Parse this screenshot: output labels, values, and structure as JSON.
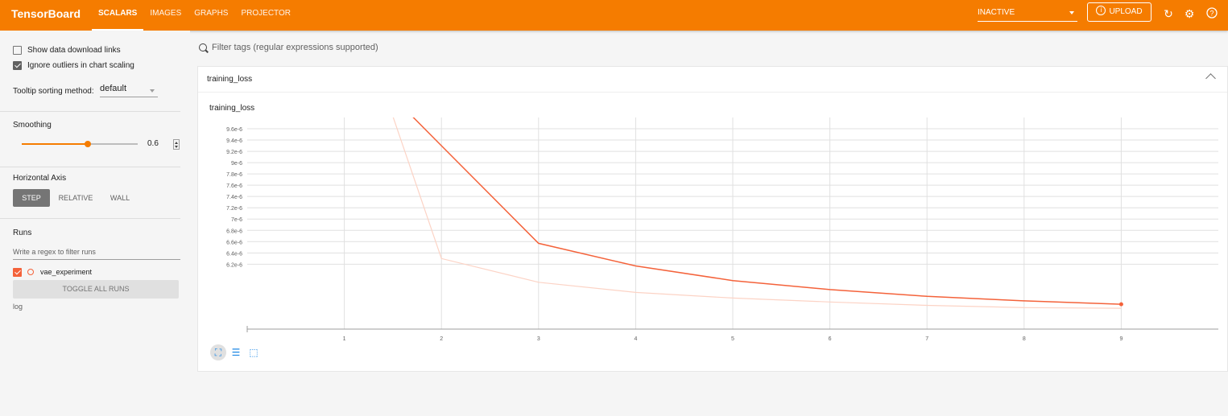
{
  "app": {
    "brand": "TensorBoard",
    "tabs": [
      {
        "label": "SCALARS",
        "active": true
      },
      {
        "label": "IMAGES",
        "active": false
      },
      {
        "label": "GRAPHS",
        "active": false
      },
      {
        "label": "PROJECTOR",
        "active": false
      }
    ],
    "run_status": "INACTIVE",
    "upload_label": "UPLOAD",
    "accent_color": "#f57c00"
  },
  "sidebar": {
    "show_download_links": {
      "label": "Show data download links",
      "checked": false
    },
    "ignore_outliers": {
      "label": "Ignore outliers in chart scaling",
      "checked": true
    },
    "tooltip_label": "Tooltip sorting method:",
    "tooltip_value": "default",
    "smoothing_label": "Smoothing",
    "smoothing_value": "0.6",
    "smoothing_fraction": 0.6,
    "horizontal_axis_label": "Horizontal Axis",
    "axis_options": [
      {
        "label": "STEP",
        "active": true
      },
      {
        "label": "RELATIVE",
        "active": false
      },
      {
        "label": "WALL",
        "active": false
      }
    ],
    "runs_label": "Runs",
    "runs_filter_placeholder": "Write a regex to filter runs",
    "runs": [
      {
        "name": "vae_experiment",
        "checked": true,
        "color": "#f4623a"
      }
    ],
    "toggle_all_label": "TOGGLE ALL RUNS",
    "log_dir": "log"
  },
  "main": {
    "filter_placeholder": "Filter tags (regular expressions supported)",
    "card_title": "training_loss",
    "chart_title": "training_loss",
    "icons": [
      "fit-domain-icon",
      "toggle-log-scale-icon",
      "select-area-icon"
    ]
  },
  "chart_data": {
    "type": "line",
    "title": "training_loss",
    "xlabel": "",
    "ylabel": "",
    "x_ticks": [
      "1",
      "2",
      "3",
      "4",
      "5",
      "6",
      "7",
      "8",
      "9"
    ],
    "y_ticks": [
      "9.6e-6",
      "9.4e-6",
      "9.2e-6",
      "9e-6",
      "7.8e-6",
      "7.6e-6",
      "7.4e-6",
      "7.2e-6",
      "7e-6",
      "6.8e-6",
      "6.6e-6",
      "6.4e-6",
      "6.2e-6"
    ],
    "xlim": [
      0,
      10
    ],
    "ylim": [
      6.05e-06,
      9.8e-06
    ],
    "grid": true,
    "series": [
      {
        "color": "#fcd3c5",
        "kind": "raw",
        "x": [
          1.5,
          2,
          3,
          4,
          5,
          6,
          7,
          8,
          9
        ],
        "y": [
          9.82e-06,
          7.3e-06,
          6.88e-06,
          6.7e-06,
          6.6e-06,
          6.53e-06,
          6.47e-06,
          6.43e-06,
          6.42e-06
        ]
      },
      {
        "color": "#f4623a",
        "kind": "smoothed",
        "x": [
          1.7,
          2,
          3,
          4,
          5,
          6,
          7,
          8,
          9
        ],
        "y": [
          9.82e-06,
          9.3e-06,
          7.57e-06,
          7.17e-06,
          6.91e-06,
          6.75e-06,
          6.63e-06,
          6.55e-06,
          6.49e-06
        ]
      }
    ]
  }
}
